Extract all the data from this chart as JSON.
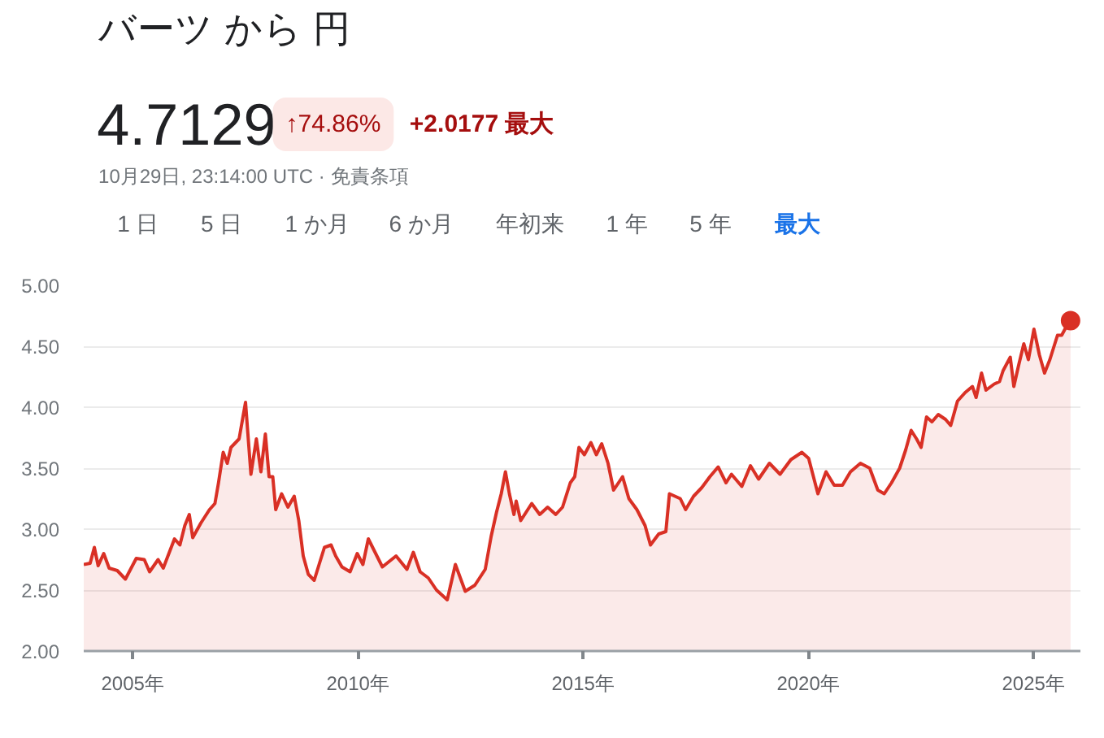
{
  "chart_data": {
    "type": "area",
    "title": "バーツ から 円",
    "annotations": [
      "4.7129",
      "↑74.86%",
      "+2.0177 最大",
      "10月29日, 23:14:00 UTC · 免責条項",
      "1 日",
      "5 日",
      "1 か月",
      "6 か月",
      "年初来",
      "1 年",
      "5 年",
      "最大"
    ],
    "x": [
      "2003-12-01",
      "2004-01-22",
      "2004-02-25",
      "2004-03-27",
      "2004-05-11",
      "2004-06-24",
      "2004-08-29",
      "2004-11-03",
      "2005-01-30",
      "2005-04-05",
      "2005-05-18",
      "2005-07-26",
      "2005-09-06",
      "2005-12-06",
      "2006-01-19",
      "2006-02-28",
      "2006-04-05",
      "2006-05-03",
      "2006-07-08",
      "2006-09-16",
      "2006-10-30",
      "2006-11-28",
      "2007-01-05",
      "2007-02-07",
      "2007-03-09",
      "2007-05-14",
      "2007-07-05",
      "2007-08-18",
      "2007-10-01",
      "2007-11-07",
      "2007-12-13",
      "2008-01-12",
      "2008-02-11",
      "2008-03-06",
      "2008-04-23",
      "2008-06-13",
      "2008-08-03",
      "2008-09-09",
      "2008-10-15",
      "2008-11-25",
      "2009-01-12",
      "2009-03-02",
      "2009-04-05",
      "2009-05-29",
      "2009-07-05",
      "2009-08-25",
      "2009-10-30",
      "2009-12-27",
      "2010-02-11",
      "2010-03-27",
      "2010-07-19",
      "2010-11-07",
      "2011-02-03",
      "2011-03-27",
      "2011-05-21",
      "2011-07-26",
      "2011-10-01",
      "2011-12-27",
      "2012-03-02",
      "2012-05-21",
      "2012-08-07",
      "2012-10-30",
      "2012-12-17",
      "2013-01-30",
      "2013-03-09",
      "2013-04-12",
      "2013-05-14",
      "2013-06-20",
      "2013-07-08",
      "2013-08-14",
      "2013-11-11",
      "2014-01-15",
      "2014-03-20",
      "2014-05-25",
      "2014-07-19",
      "2014-09-20",
      "2014-10-26",
      "2014-11-29",
      "2015-01-12",
      "2015-03-06",
      "2015-04-19",
      "2015-06-02",
      "2015-07-23",
      "2015-09-06",
      "2015-11-18",
      "2016-01-08",
      "2016-03-13",
      "2016-05-18",
      "2016-07-01",
      "2016-09-06",
      "2016-11-03",
      "2016-12-02",
      "2017-02-28",
      "2017-04-12",
      "2017-06-16",
      "2017-08-21",
      "2017-10-26",
      "2018-01-01",
      "2018-03-06",
      "2018-04-19",
      "2018-07-12",
      "2018-09-20",
      "2018-11-25",
      "2019-02-21",
      "2019-05-18",
      "2019-08-14",
      "2019-11-11",
      "2020-01-05",
      "2020-03-20",
      "2020-05-25",
      "2020-07-30",
      "2020-10-05",
      "2020-12-09",
      "2021-02-28",
      "2021-05-14",
      "2021-07-19",
      "2021-09-09",
      "2021-11-07",
      "2022-01-12",
      "2022-03-02",
      "2022-04-15",
      "2022-05-29",
      "2022-07-05",
      "2022-08-18",
      "2022-10-01",
      "2022-11-21",
      "2023-01-19",
      "2023-03-02",
      "2023-04-26",
      "2023-06-27",
      "2023-08-25",
      "2023-09-24",
      "2023-11-07",
      "2023-12-13",
      "2024-02-18",
      "2024-04-01",
      "2024-04-30",
      "2024-06-27",
      "2024-07-26",
      "2024-09-02",
      "2024-10-15",
      "2024-11-21",
      "2025-01-05",
      "2025-02-18",
      "2025-04-01",
      "2025-05-14",
      "2025-07-15",
      "2025-08-18",
      "2025-09-24",
      "2025-10-29"
    ],
    "series": [
      {
        "color": "#d93025",
        "values": [
          2.71,
          2.72,
          2.85,
          2.7,
          2.8,
          2.68,
          2.66,
          2.59,
          2.76,
          2.75,
          2.65,
          2.75,
          2.68,
          2.92,
          2.87,
          3.03,
          3.12,
          2.93,
          3.05,
          3.16,
          3.21,
          3.38,
          3.63,
          3.54,
          3.67,
          3.74,
          4.04,
          3.45,
          3.74,
          3.47,
          3.78,
          3.43,
          3.43,
          3.16,
          3.29,
          3.18,
          3.27,
          3.07,
          2.78,
          2.63,
          2.58,
          2.74,
          2.85,
          2.87,
          2.78,
          2.69,
          2.65,
          2.8,
          2.71,
          2.92,
          2.69,
          2.78,
          2.67,
          2.81,
          2.65,
          2.6,
          2.5,
          2.42,
          2.71,
          2.49,
          2.54,
          2.67,
          2.94,
          3.14,
          3.29,
          3.47,
          3.29,
          3.12,
          3.23,
          3.07,
          3.21,
          3.12,
          3.18,
          3.12,
          3.18,
          3.38,
          3.43,
          3.67,
          3.61,
          3.71,
          3.61,
          3.7,
          3.54,
          3.32,
          3.43,
          3.25,
          3.16,
          3.03,
          2.87,
          2.96,
          2.98,
          3.29,
          3.25,
          3.16,
          3.27,
          3.34,
          3.43,
          3.51,
          3.38,
          3.45,
          3.35,
          3.52,
          3.41,
          3.54,
          3.45,
          3.57,
          3.63,
          3.58,
          3.29,
          3.47,
          3.36,
          3.36,
          3.47,
          3.54,
          3.5,
          3.32,
          3.29,
          3.38,
          3.5,
          3.65,
          3.81,
          3.74,
          3.67,
          3.92,
          3.88,
          3.94,
          3.9,
          3.85,
          4.05,
          4.12,
          4.17,
          4.08,
          4.28,
          4.14,
          4.19,
          4.21,
          4.3,
          4.41,
          4.17,
          4.34,
          4.52,
          4.39,
          4.64,
          4.43,
          4.28,
          4.39,
          4.59,
          4.59,
          4.66,
          4.71
        ]
      },
      {
        "type": "scatter",
        "color": "#d93025",
        "marker": "circle",
        "x": [
          "2025-10-29"
        ],
        "values": [
          4.71
        ]
      }
    ],
    "xlim": [
      "2003-12-01",
      "2026-01-17"
    ],
    "ylim": [
      2,
      5
    ],
    "xticks": [
      {
        "value": "2005",
        "label": "2005年"
      },
      {
        "value": "2010",
        "label": "2010年"
      },
      {
        "value": "2015",
        "label": "2015年"
      },
      {
        "value": "2020",
        "label": "2020年"
      },
      {
        "value": "2025",
        "label": "2025年"
      }
    ],
    "yticks": [
      {
        "value": 2,
        "label": "2.00"
      },
      {
        "value": 2.5,
        "label": "2.50"
      },
      {
        "value": 3,
        "label": "3.00"
      },
      {
        "value": 3.5,
        "label": "3.50"
      },
      {
        "value": 4,
        "label": "4.00"
      },
      {
        "value": 4.5,
        "label": "4.50"
      },
      {
        "value": 5,
        "label": "5.00"
      }
    ],
    "grid": "y",
    "marker": "none",
    "line_style": "solid"
  }
}
